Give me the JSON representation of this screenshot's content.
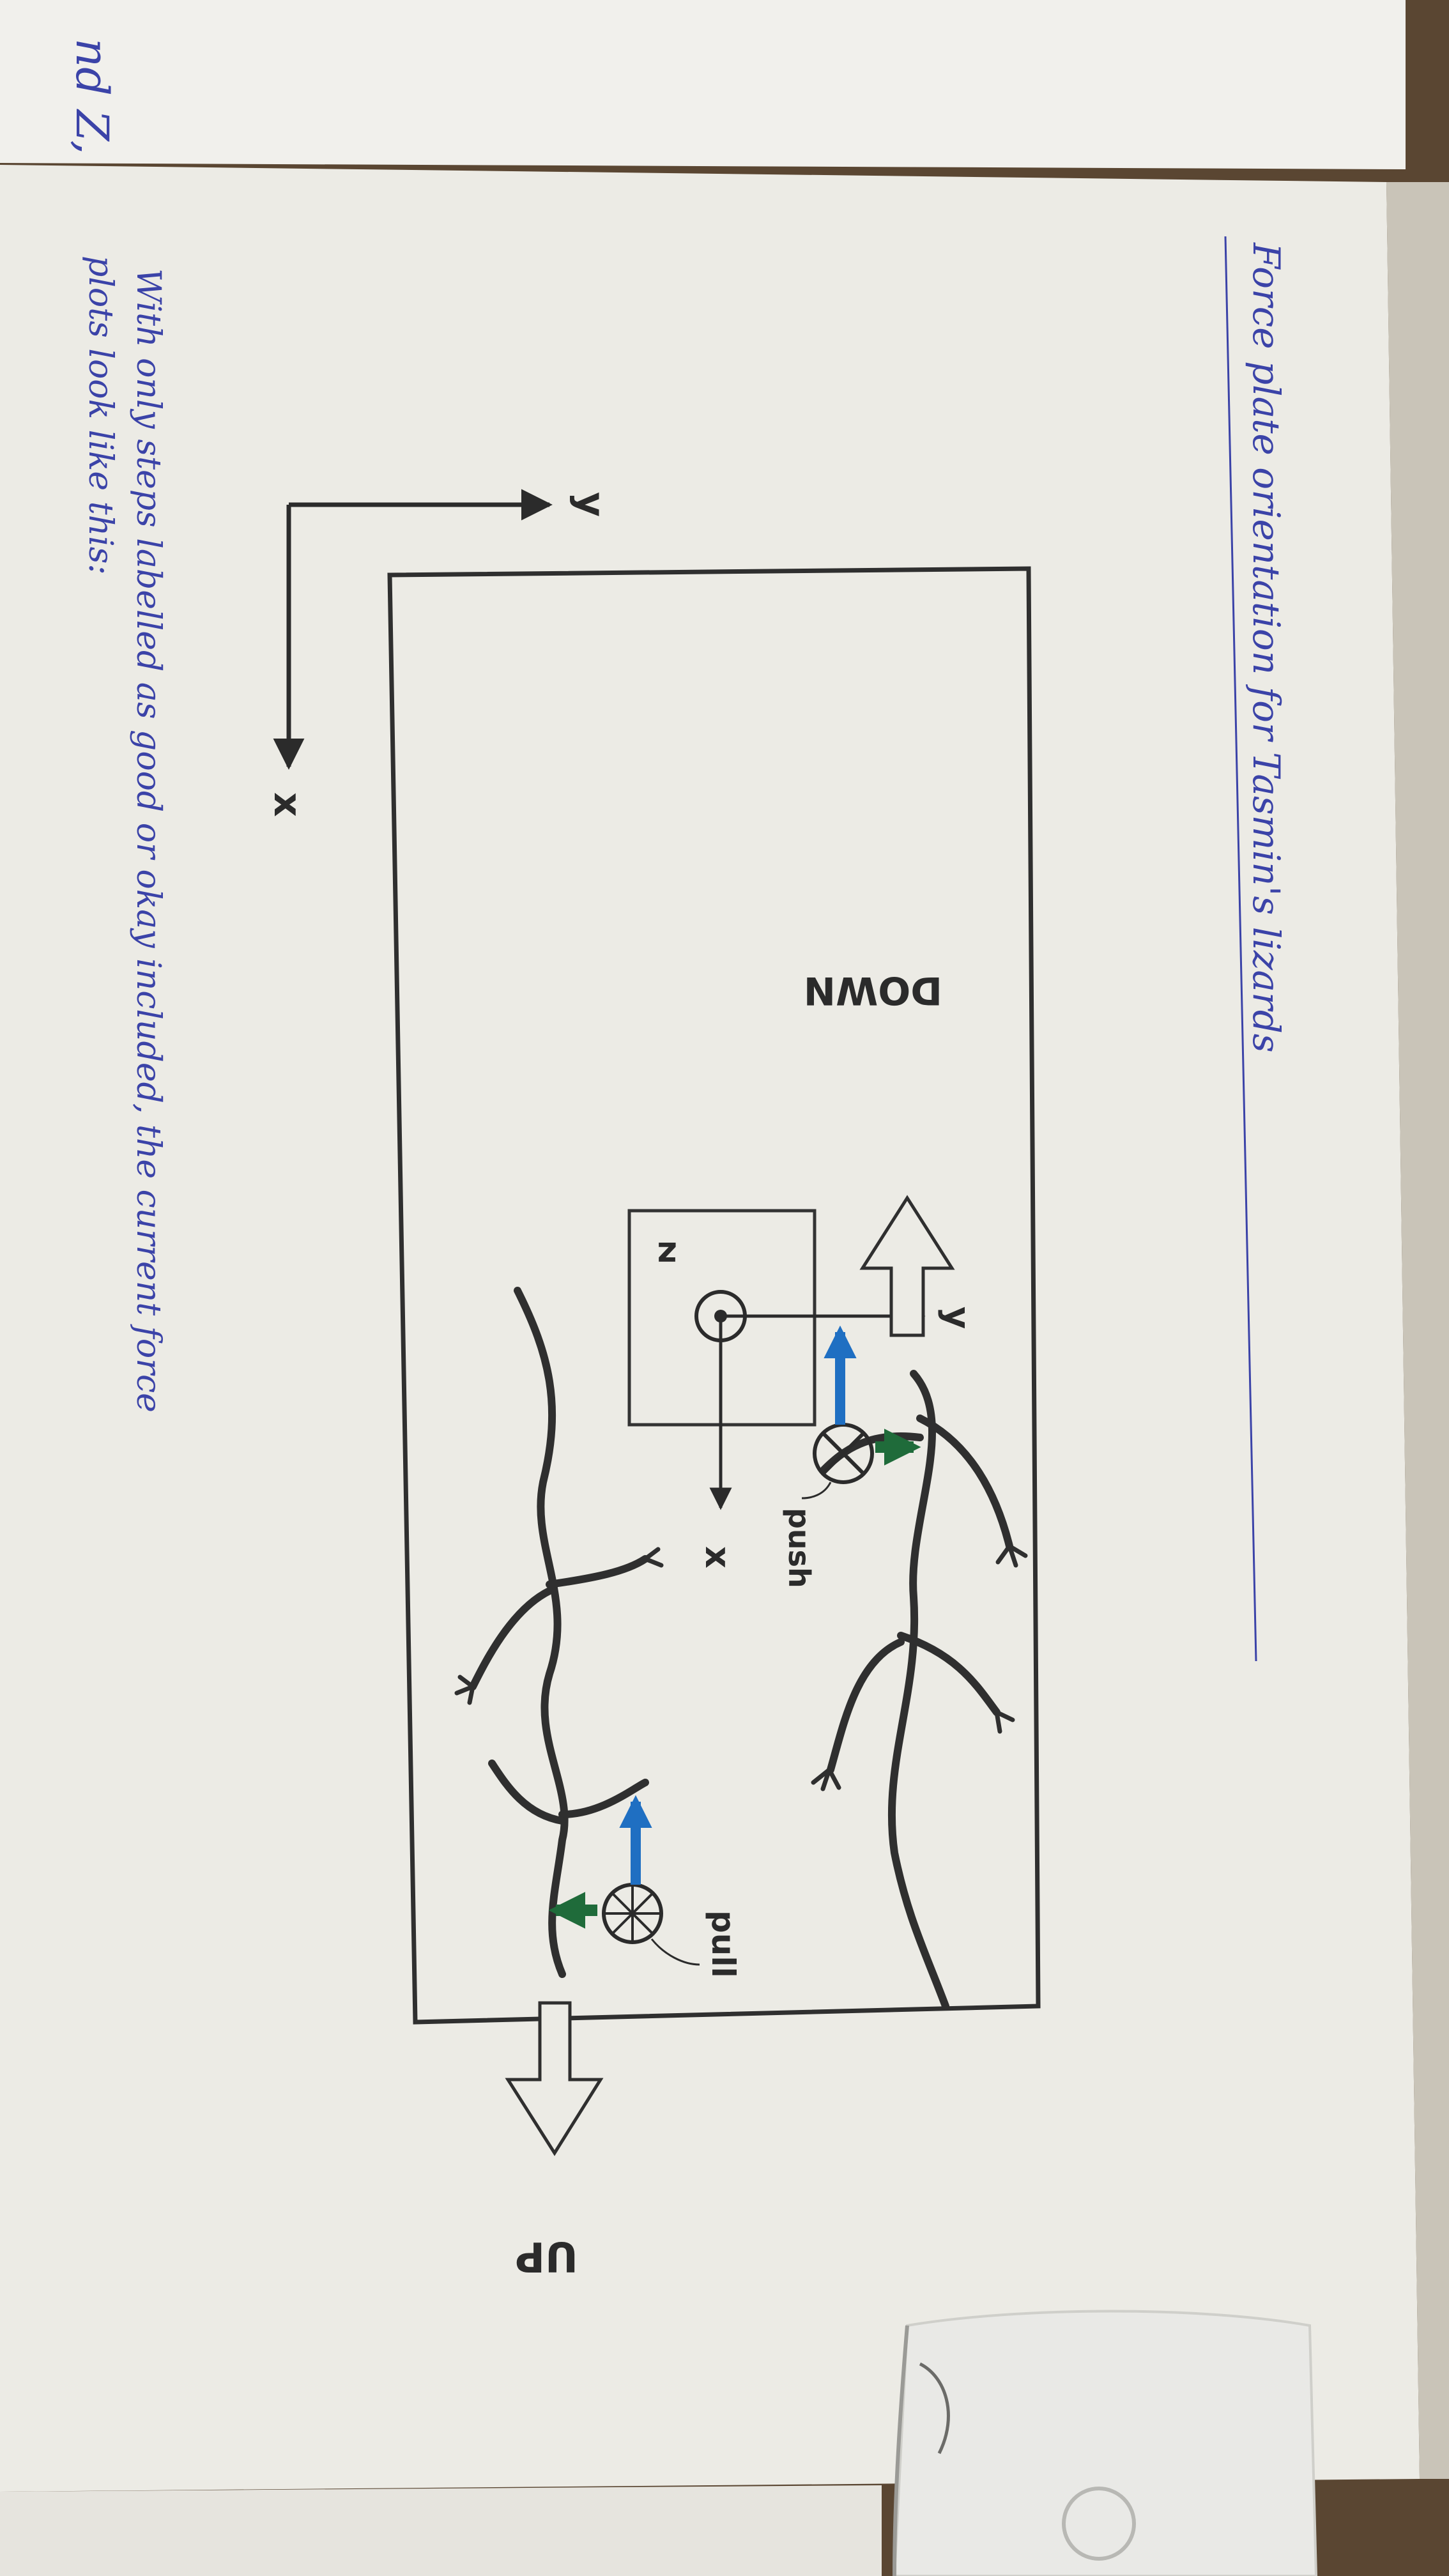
{
  "colors": {
    "ink_blue": "#3b43a8",
    "pencil": "#3a3a3a",
    "force_blue": "#1f6fc2",
    "force_green": "#1f6b3a",
    "paper": "#ecebe5",
    "table": "#5a4632"
  },
  "prev_page": {
    "fragment": "nd Z,"
  },
  "title": "Force plate orientation for Tasmin's lizards",
  "plate_axes": {
    "y": "y",
    "x": "x"
  },
  "sensor_axes": {
    "z": "z",
    "y": "y",
    "x": "x"
  },
  "directions": {
    "down": "DOWN",
    "up": "UP"
  },
  "labels": {
    "push": "push",
    "pull": "pull"
  },
  "note": {
    "line1": "With only steps labelled as good or okay included, the current force",
    "line2": "plots look like this:"
  },
  "icons": [
    "lizard-icon",
    "eraser-icon",
    "wheel-icon"
  ]
}
